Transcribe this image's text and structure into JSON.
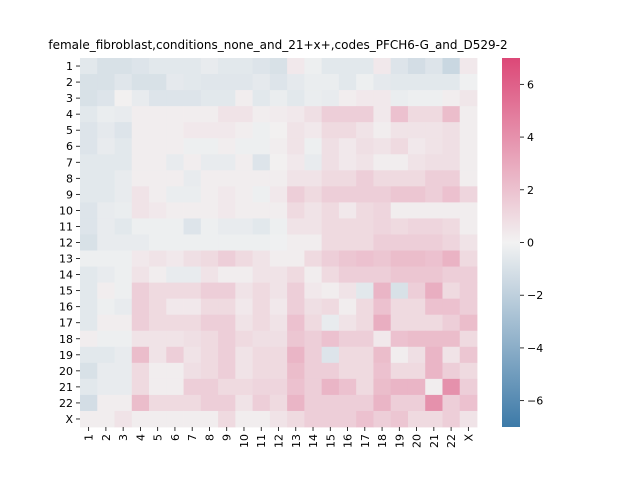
{
  "chart_data": {
    "type": "heatmap",
    "title": "female_fibroblast,conditions_none_and_21+x+,codes_PFCH6-G_and_D529-2",
    "xlabel": "",
    "ylabel": "",
    "row_labels": [
      "1",
      "2",
      "3",
      "4",
      "5",
      "6",
      "7",
      "8",
      "9",
      "10",
      "11",
      "12",
      "13",
      "14",
      "15",
      "16",
      "17",
      "18",
      "19",
      "20",
      "21",
      "22",
      "X"
    ],
    "col_labels": [
      "1",
      "2",
      "3",
      "4",
      "5",
      "6",
      "7",
      "8",
      "9",
      "10",
      "11",
      "12",
      "13",
      "14",
      "15",
      "16",
      "17",
      "18",
      "19",
      "20",
      "21",
      "22",
      "X"
    ],
    "colorbar": {
      "min": -7,
      "max": 7,
      "ticks": [
        -6,
        -4,
        -2,
        0,
        2,
        4,
        6
      ],
      "colormap": "diverging blue-white-pink",
      "low_color": "#3d7aa8",
      "mid_color": "#f2f2f2",
      "high_color": "#dc4877"
    },
    "values": [
      [
        -0.6,
        -1.0,
        -1.0,
        -0.8,
        -0.6,
        -0.6,
        -0.6,
        -0.4,
        -0.6,
        -0.6,
        -0.8,
        -1.0,
        0.4,
        -0.2,
        -0.6,
        -0.6,
        -0.6,
        0.4,
        -0.8,
        -1.2,
        -0.8,
        -1.6,
        0.4
      ],
      [
        -1.0,
        -1.0,
        -0.7,
        -1.0,
        -1.0,
        -0.5,
        -0.6,
        -0.7,
        -0.7,
        -0.7,
        -0.5,
        -0.8,
        -0.5,
        -0.3,
        -0.3,
        -0.6,
        -0.2,
        -0.5,
        -0.6,
        -0.6,
        -0.6,
        -0.6,
        -0.1
      ],
      [
        -1.0,
        -0.8,
        0.1,
        -0.4,
        -0.8,
        -0.8,
        -0.8,
        -0.6,
        -0.6,
        0.2,
        -0.6,
        -0.3,
        -0.6,
        -0.3,
        -0.4,
        0.2,
        0.4,
        0.4,
        -0.3,
        -0.2,
        -0.2,
        0.2,
        0.5
      ],
      [
        -0.6,
        -0.3,
        -0.4,
        0.2,
        0.2,
        0.2,
        0.2,
        0.2,
        0.6,
        0.6,
        0.2,
        0.3,
        0.4,
        0.8,
        1.5,
        1.5,
        1.5,
        0.4,
        2.0,
        1.0,
        1.0,
        2.2,
        0.2
      ],
      [
        -0.8,
        -0.5,
        -0.8,
        0.2,
        0.2,
        0.2,
        0.4,
        0.4,
        0.4,
        0.2,
        -0.2,
        0.1,
        0.6,
        0.4,
        1.0,
        1.0,
        0.6,
        0.2,
        0.6,
        0.6,
        0.6,
        0.8,
        0.2
      ],
      [
        -0.8,
        -0.4,
        -0.6,
        0.2,
        0.2,
        0.2,
        -0.2,
        -0.2,
        0.2,
        -0.2,
        -0.2,
        0.2,
        0.6,
        -0.2,
        0.8,
        0.4,
        0.8,
        0.6,
        1.0,
        0.4,
        0.6,
        0.8,
        0.2
      ],
      [
        -0.6,
        -0.6,
        -0.6,
        0.2,
        0.2,
        -0.4,
        0.2,
        -0.4,
        -0.4,
        0.2,
        -0.8,
        0.1,
        0.4,
        -0.4,
        0.8,
        0.4,
        0.6,
        0.2,
        0.2,
        0.6,
        0.8,
        0.8,
        0.2
      ],
      [
        -0.6,
        -0.6,
        -0.4,
        0.2,
        0.2,
        0.2,
        -0.4,
        0.2,
        0.2,
        0.2,
        0.2,
        0.2,
        0.6,
        0.6,
        1.0,
        1.0,
        1.5,
        1.0,
        1.0,
        1.0,
        1.5,
        1.5,
        0.2
      ],
      [
        -0.6,
        -0.6,
        -0.4,
        0.6,
        0.2,
        -0.3,
        -0.3,
        0.2,
        0.4,
        0.2,
        -0.2,
        0.4,
        1.5,
        1.0,
        1.5,
        1.5,
        1.5,
        1.5,
        1.8,
        1.8,
        1.5,
        2.0,
        1.2
      ],
      [
        -0.8,
        -0.4,
        -0.3,
        0.6,
        0.4,
        0.2,
        0.2,
        0.2,
        0.4,
        0.2,
        0.2,
        0.2,
        1.0,
        0.6,
        1.0,
        0.4,
        1.0,
        1.2,
        0.2,
        0.2,
        0.2,
        0.2,
        0.2
      ],
      [
        -0.8,
        -0.4,
        -0.6,
        -0.2,
        -0.2,
        -0.2,
        -0.8,
        -0.2,
        -0.4,
        -0.4,
        -0.6,
        -0.2,
        0.6,
        0.6,
        1.0,
        1.0,
        1.0,
        1.2,
        1.0,
        1.2,
        1.2,
        1.0,
        0.2
      ],
      [
        -1.0,
        -0.4,
        -0.4,
        -0.4,
        -0.2,
        -0.2,
        -0.2,
        -0.2,
        -0.2,
        -0.2,
        -0.2,
        -0.1,
        0.2,
        0.2,
        1.0,
        1.0,
        1.0,
        1.5,
        1.5,
        1.5,
        1.5,
        1.2,
        0.6
      ],
      [
        -0.2,
        -0.2,
        -0.2,
        0.4,
        0.6,
        0.4,
        0.8,
        1.0,
        1.5,
        1.0,
        0.6,
        0.2,
        0.2,
        1.0,
        1.5,
        1.8,
        2.0,
        1.8,
        2.2,
        2.2,
        2.0,
        2.6,
        1.0
      ],
      [
        -0.6,
        -0.4,
        -0.2,
        0.6,
        0.2,
        -0.4,
        -0.4,
        0.6,
        0.2,
        0.2,
        0.6,
        0.6,
        1.0,
        0.2,
        1.0,
        1.5,
        1.5,
        1.5,
        1.8,
        1.8,
        1.8,
        1.5,
        1.5
      ],
      [
        -0.6,
        0.2,
        -0.2,
        1.5,
        1.0,
        1.0,
        1.0,
        1.5,
        1.5,
        0.6,
        1.0,
        0.6,
        1.5,
        0.4,
        0.2,
        0.6,
        -0.6,
        2.5,
        -1.0,
        1.5,
        2.8,
        1.0,
        1.5
      ],
      [
        -0.6,
        -0.2,
        -0.4,
        1.5,
        1.0,
        0.4,
        0.4,
        1.0,
        1.0,
        0.4,
        1.0,
        0.4,
        1.5,
        0.8,
        1.0,
        0.2,
        1.0,
        2.0,
        1.0,
        1.0,
        2.0,
        2.0,
        1.5
      ],
      [
        -0.6,
        0.2,
        0.2,
        1.5,
        1.0,
        1.0,
        1.0,
        1.5,
        1.5,
        0.6,
        1.0,
        0.6,
        2.0,
        1.0,
        -0.4,
        0.6,
        1.0,
        2.8,
        1.0,
        1.0,
        1.0,
        1.5,
        2.2
      ],
      [
        0.2,
        -0.2,
        -0.2,
        0.6,
        0.6,
        0.6,
        0.8,
        1.0,
        1.5,
        1.0,
        0.8,
        0.8,
        1.8,
        1.5,
        2.0,
        1.5,
        1.5,
        0.4,
        2.0,
        2.2,
        2.2,
        2.2,
        1.0
      ],
      [
        -0.6,
        -0.6,
        -0.4,
        2.2,
        0.6,
        1.5,
        0.6,
        1.0,
        1.5,
        0.6,
        1.0,
        1.0,
        2.5,
        1.5,
        -0.8,
        1.0,
        1.0,
        2.2,
        0.2,
        0.8,
        2.5,
        0.6,
        1.8
      ],
      [
        -1.0,
        -0.4,
        -0.4,
        1.0,
        0.2,
        0.2,
        0.8,
        1.0,
        1.5,
        0.6,
        1.0,
        1.0,
        2.2,
        1.5,
        1.5,
        1.0,
        1.0,
        2.0,
        1.0,
        1.0,
        2.5,
        1.5,
        1.0
      ],
      [
        -0.6,
        -0.4,
        -0.4,
        1.0,
        0.2,
        0.2,
        1.5,
        1.5,
        1.0,
        1.0,
        1.2,
        1.2,
        2.0,
        1.5,
        2.5,
        2.0,
        1.0,
        2.2,
        2.5,
        2.5,
        0.2,
        4.0,
        1.5
      ],
      [
        -1.2,
        0.2,
        0.2,
        2.2,
        1.0,
        1.0,
        1.0,
        1.5,
        1.5,
        0.6,
        1.5,
        1.0,
        2.5,
        1.5,
        1.5,
        1.5,
        1.5,
        2.5,
        1.5,
        1.5,
        4.0,
        1.5,
        2.0
      ],
      [
        0.2,
        0.2,
        0.6,
        0.2,
        0.2,
        0.2,
        0.2,
        0.2,
        1.0,
        0.2,
        0.2,
        0.6,
        1.0,
        1.5,
        1.5,
        1.5,
        2.0,
        1.5,
        1.8,
        1.0,
        1.0,
        1.5,
        0.6
      ]
    ]
  }
}
